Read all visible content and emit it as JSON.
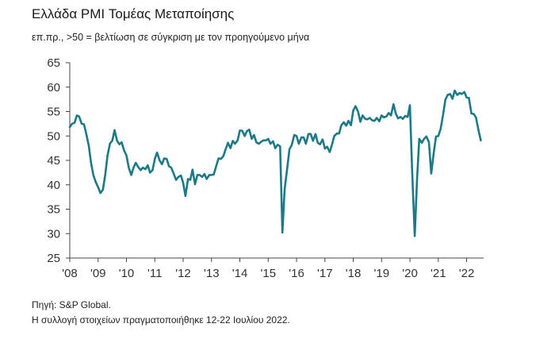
{
  "title": "Ελλάδα PMI Τομέας Μεταποίησης",
  "subtitle": "επ.πρ., >50 = βελτίωση σε σύγκριση με τον προηγούμενο μήνα",
  "source_line1": "Πηγή: S&P Global.",
  "source_line2": "Η συλλογή στοιχείων πραγματοποιήθηκε 12-22 Ιουλίου 2022.",
  "colors": {
    "line": "#1b7a86",
    "axis": "#444444",
    "text": "#333333"
  },
  "chart_data": {
    "type": "line",
    "title": "Ελλάδα PMI Τομέας Μεταποίησης",
    "xlabel": "",
    "ylabel": "",
    "ylim": [
      25,
      65
    ],
    "yticks": [
      25,
      30,
      35,
      40,
      45,
      50,
      55,
      60,
      65
    ],
    "xlim": [
      2008.0,
      2022.6
    ],
    "xtick_labels": [
      "'08",
      "'09",
      "'10",
      "'11",
      "'12",
      "'13",
      "'14",
      "'15",
      "'16",
      "'17",
      "'18",
      "'19",
      "'20",
      "'21",
      "'22"
    ],
    "grid": false,
    "series": [
      {
        "x": [
          2008.0,
          2008.08,
          2008.17,
          2008.25,
          2008.33,
          2008.42,
          2008.5,
          2008.58,
          2008.67,
          2008.75,
          2008.83,
          2008.92,
          2009.0,
          2009.08,
          2009.17,
          2009.25,
          2009.33,
          2009.42,
          2009.5,
          2009.58,
          2009.67,
          2009.75,
          2009.83,
          2009.92,
          2010.0,
          2010.08,
          2010.17,
          2010.25,
          2010.33,
          2010.42,
          2010.5,
          2010.58,
          2010.67,
          2010.75,
          2010.83,
          2010.92,
          2011.0,
          2011.08,
          2011.17,
          2011.25,
          2011.33,
          2011.42,
          2011.5,
          2011.58,
          2011.67,
          2011.75,
          2011.83,
          2011.92,
          2012.0,
          2012.08,
          2012.17,
          2012.25,
          2012.33,
          2012.42,
          2012.5,
          2012.58,
          2012.67,
          2012.75,
          2012.83,
          2012.92,
          2013.0,
          2013.08,
          2013.17,
          2013.25,
          2013.33,
          2013.42,
          2013.5,
          2013.58,
          2013.67,
          2013.75,
          2013.83,
          2013.92,
          2014.0,
          2014.08,
          2014.17,
          2014.25,
          2014.33,
          2014.42,
          2014.5,
          2014.58,
          2014.67,
          2014.75,
          2014.83,
          2014.92,
          2015.0,
          2015.08,
          2015.17,
          2015.25,
          2015.33,
          2015.42,
          2015.5,
          2015.58,
          2015.67,
          2015.75,
          2015.83,
          2015.92,
          2016.0,
          2016.08,
          2016.17,
          2016.25,
          2016.33,
          2016.42,
          2016.5,
          2016.58,
          2016.67,
          2016.75,
          2016.83,
          2016.92,
          2017.0,
          2017.08,
          2017.17,
          2017.25,
          2017.33,
          2017.42,
          2017.5,
          2017.58,
          2017.67,
          2017.75,
          2017.83,
          2017.92,
          2018.0,
          2018.08,
          2018.17,
          2018.25,
          2018.33,
          2018.42,
          2018.5,
          2018.58,
          2018.67,
          2018.75,
          2018.83,
          2018.92,
          2019.0,
          2019.08,
          2019.17,
          2019.25,
          2019.33,
          2019.42,
          2019.5,
          2019.58,
          2019.67,
          2019.75,
          2019.83,
          2019.92,
          2020.0,
          2020.08,
          2020.17,
          2020.25,
          2020.33,
          2020.42,
          2020.5,
          2020.58,
          2020.67,
          2020.75,
          2020.83,
          2020.92,
          2021.0,
          2021.08,
          2021.17,
          2021.25,
          2021.33,
          2021.42,
          2021.5,
          2021.58,
          2021.67,
          2021.75,
          2021.83,
          2021.92,
          2022.0,
          2022.08,
          2022.17,
          2022.25,
          2022.33,
          2022.42,
          2022.5
        ],
        "values": [
          51.8,
          52.5,
          52.7,
          54.2,
          54.0,
          52.5,
          52.4,
          50.5,
          48.0,
          44.5,
          42.0,
          40.5,
          39.5,
          38.3,
          39.0,
          42.0,
          46.0,
          48.5,
          49.0,
          51.2,
          49.0,
          48.3,
          48.7,
          47.0,
          46.0,
          43.5,
          42.0,
          43.5,
          44.5,
          43.6,
          43.0,
          43.5,
          43.2,
          44.0,
          42.5,
          43.0,
          45.3,
          46.6,
          45.0,
          44.2,
          45.4,
          45.3,
          43.8,
          43.5,
          42.2,
          41.0,
          41.6,
          41.9,
          40.4,
          37.7,
          41.2,
          41.0,
          43.1,
          40.1,
          42.0,
          42.0,
          41.6,
          42.2,
          41.2,
          42.0,
          42.0,
          42.1,
          43.9,
          45.4,
          45.3,
          45.9,
          47.3,
          48.6,
          47.5,
          49.0,
          48.4,
          49.1,
          51.1,
          51.1,
          50.0,
          51.0,
          51.3,
          49.4,
          50.2,
          48.7,
          48.4,
          48.8,
          49.1,
          49.1,
          49.4,
          48.4,
          48.9,
          47.5,
          48.2,
          47.9,
          30.2,
          39.1,
          43.3,
          47.3,
          48.1,
          50.2,
          50.0,
          48.4,
          49.7,
          49.7,
          48.4,
          50.4,
          50.4,
          49.0,
          50.4,
          48.6,
          48.3,
          49.3,
          47.4,
          47.8,
          46.7,
          48.2,
          50.0,
          50.5,
          50.5,
          52.2,
          52.8,
          52.1,
          53.1,
          52.2,
          55.2,
          56.1,
          55.0,
          52.9,
          54.2,
          53.5,
          53.4,
          53.7,
          53.2,
          53.1,
          53.7,
          53.0,
          54.2,
          53.8,
          54.0,
          54.7,
          54.2,
          56.5,
          54.6,
          53.6,
          53.9,
          53.5,
          54.1,
          53.9,
          56.3,
          42.5,
          29.5,
          41.1,
          49.4,
          48.6,
          49.4,
          49.9,
          48.7,
          42.3,
          46.1,
          49.9,
          50.0,
          51.4,
          54.4,
          57.4,
          58.4,
          58.6,
          57.6,
          59.3,
          58.4,
          58.8,
          58.6,
          59.0,
          57.9,
          57.8,
          54.6,
          54.5,
          53.8,
          51.1,
          49.1
        ]
      }
    ]
  }
}
